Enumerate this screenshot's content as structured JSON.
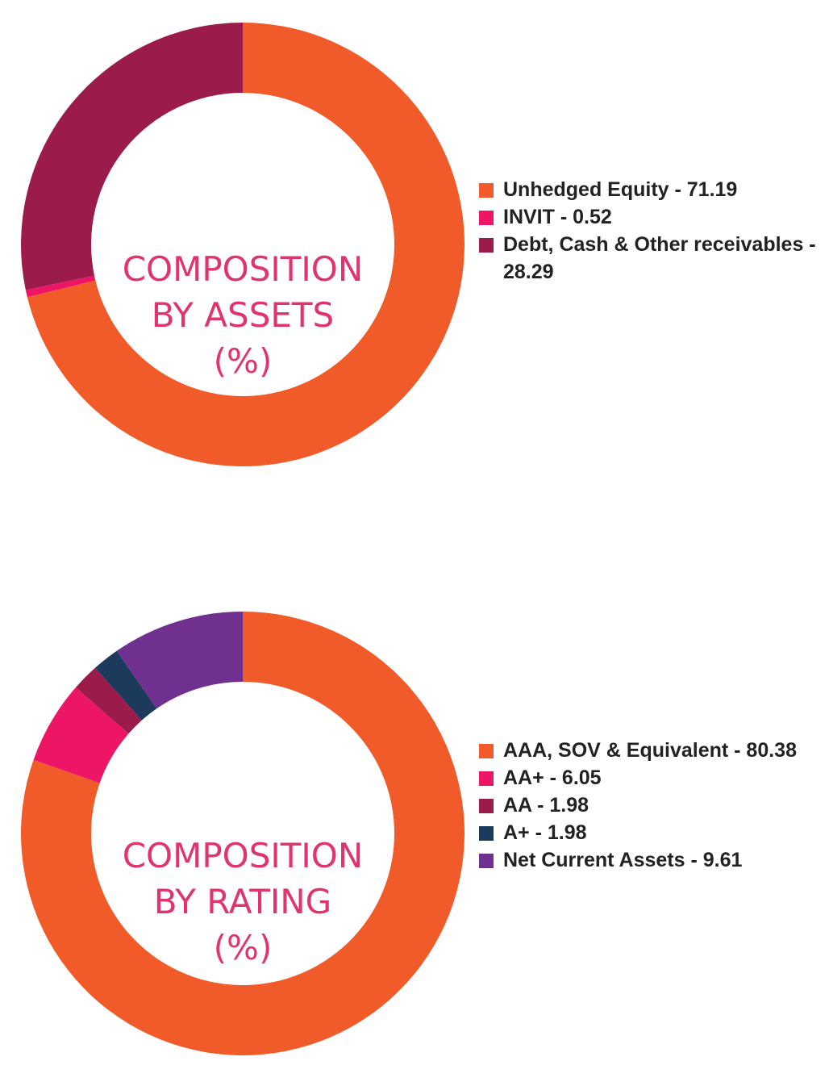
{
  "charts": [
    {
      "center_label": [
        "COMPOSITION",
        "BY ASSETS",
        "(%)"
      ],
      "legend": [
        "Unhedged Equity - 71.19",
        "INVIT - 0.52",
        "Debt, Cash & Other receivables - 28.29"
      ]
    },
    {
      "center_label": [
        "COMPOSITION",
        "BY RATING",
        "(%)"
      ],
      "legend": [
        "AAA, SOV & Equivalent - 80.38",
        "AA+ - 6.05",
        "AA - 1.98",
        "A+ - 1.98",
        "Net Current Assets - 9.61"
      ]
    }
  ],
  "chart_data": [
    {
      "type": "pie",
      "donut": true,
      "title": "COMPOSITION BY ASSETS (%)",
      "categories": [
        "Unhedged Equity",
        "INVIT",
        "Debt, Cash & Other receivables"
      ],
      "values": [
        71.19,
        0.52,
        28.29
      ],
      "colors": [
        "#f15a29",
        "#ed1566",
        "#9b1b4b"
      ],
      "legend_position": "right"
    },
    {
      "type": "pie",
      "donut": true,
      "title": "COMPOSITION BY RATING (%)",
      "categories": [
        "AAA, SOV & Equivalent",
        "AA+",
        "AA",
        "A+",
        "Net Current Assets"
      ],
      "values": [
        80.38,
        6.05,
        1.98,
        1.98,
        9.61
      ],
      "colors": [
        "#f15a29",
        "#ed1566",
        "#9b1b4b",
        "#1b3a5c",
        "#70308f"
      ],
      "legend_position": "right"
    }
  ]
}
